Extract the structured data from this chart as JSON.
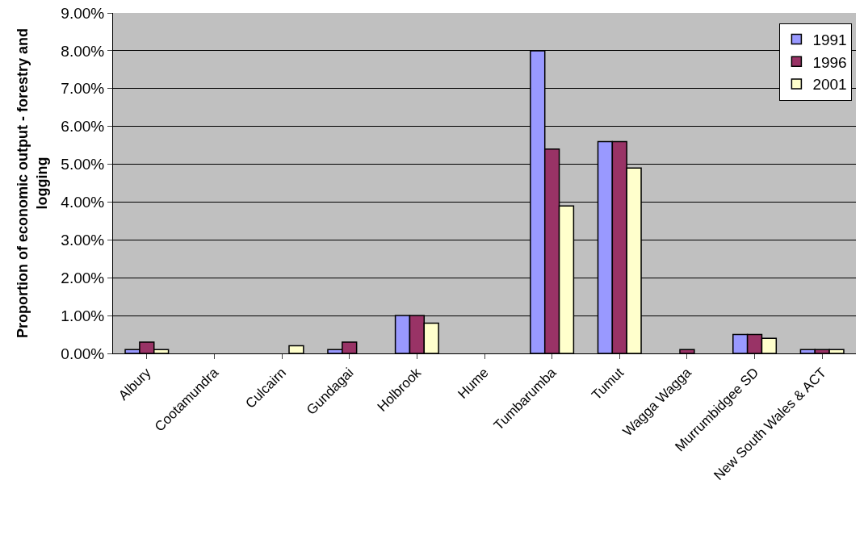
{
  "chart_data": {
    "type": "bar",
    "ylabel": "Proportion of economic output - forestry and logging",
    "categories": [
      "Albury",
      "Cootamundra",
      "Culcairn",
      "Gundagai",
      "Holbrook",
      "Hume",
      "Tumbarumba",
      "Tumut",
      "Wagga Wagga",
      "Murrumbidgee SD",
      "New South Wales & ACT"
    ],
    "series": [
      {
        "name": "1991",
        "color": "#9999ff",
        "values": [
          0.1,
          null,
          null,
          0.1,
          1.0,
          null,
          8.0,
          5.6,
          null,
          0.5,
          0.1
        ]
      },
      {
        "name": "1996",
        "color": "#993366",
        "values": [
          0.3,
          null,
          null,
          0.3,
          1.0,
          null,
          5.4,
          5.6,
          0.1,
          0.5,
          0.1
        ]
      },
      {
        "name": "2001",
        "color": "#ffffcc",
        "values": [
          0.1,
          null,
          0.2,
          null,
          0.8,
          null,
          3.9,
          4.9,
          null,
          0.4,
          0.1
        ]
      }
    ],
    "ylim": [
      0,
      9
    ],
    "yticks": [
      {
        "value": 0,
        "label": "0.00%"
      },
      {
        "value": 1,
        "label": "1.00%"
      },
      {
        "value": 2,
        "label": "2.00%"
      },
      {
        "value": 3,
        "label": "3.00%"
      },
      {
        "value": 4,
        "label": "4.00%"
      },
      {
        "value": 5,
        "label": "5.00%"
      },
      {
        "value": 6,
        "label": "6.00%"
      },
      {
        "value": 7,
        "label": "7.00%"
      },
      {
        "value": 8,
        "label": "8.00%"
      },
      {
        "value": 9,
        "label": "9.00%"
      }
    ],
    "grid": "y",
    "legend": "top right"
  }
}
